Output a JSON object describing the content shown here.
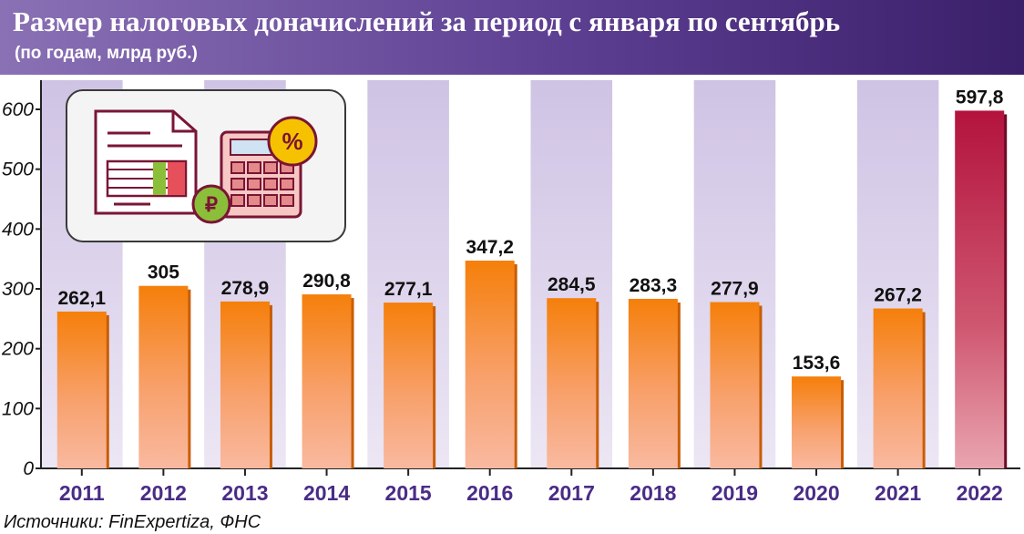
{
  "header": {
    "title": "Размер налоговых доначислений за период с января по сентябрь",
    "subtitle": "(по годам, млрд руб.)"
  },
  "footer": {
    "source": "Источники: FinExpertiza, ФНС"
  },
  "illustration": {
    "icons": [
      "document-icon",
      "calculator-icon",
      "percent-icon",
      "ruble-icon"
    ],
    "percent_symbol": "%",
    "ruble_symbol": "₽"
  },
  "colors": {
    "header_start": "#8a71b5",
    "header_end": "#3a1f6a",
    "bar_orange_top": "#f57f0a",
    "bar_orange_bottom": "#f9b49a",
    "bar_highlight_top": "#b3133d",
    "bar_highlight_bottom": "#e59aa6",
    "column_band": "#dcd3eb"
  },
  "chart_data": {
    "type": "bar",
    "categories": [
      "2011",
      "2012",
      "2013",
      "2014",
      "2015",
      "2016",
      "2017",
      "2018",
      "2019",
      "2020",
      "2021",
      "2022"
    ],
    "values": [
      262.1,
      305,
      278.9,
      290.8,
      277.1,
      347.2,
      284.5,
      283.3,
      277.9,
      153.6,
      267.2,
      597.8
    ],
    "value_labels": [
      "262,1",
      "305",
      "278,9",
      "290,8",
      "277,1",
      "347,2",
      "284,5",
      "283,3",
      "277,9",
      "153,6",
      "267,2",
      "597,8"
    ],
    "highlight_category": "2022",
    "yticks": [
      0,
      100,
      200,
      300,
      400,
      500,
      600
    ],
    "ylim": [
      0,
      600
    ],
    "title": "Размер налоговых доначислений за период с января по сентябрь",
    "xlabel": "",
    "ylabel": "",
    "grid": false
  }
}
